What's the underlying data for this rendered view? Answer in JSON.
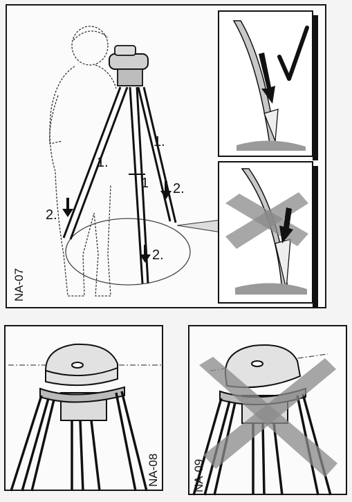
{
  "figures": {
    "top": {
      "label": "NA-07"
    },
    "bottom_left": {
      "label": "NA-08"
    },
    "bottom_right": {
      "label": "NA-09"
    }
  },
  "steps": {
    "s1a": "1.",
    "s1b": "1.",
    "s1c": "1",
    "s2a": "2.",
    "s2b": "2.",
    "s2c": "2."
  },
  "colors": {
    "ink": "#151515",
    "cross_gray": "#8a8a8a",
    "shade": "#9a9a9a"
  }
}
